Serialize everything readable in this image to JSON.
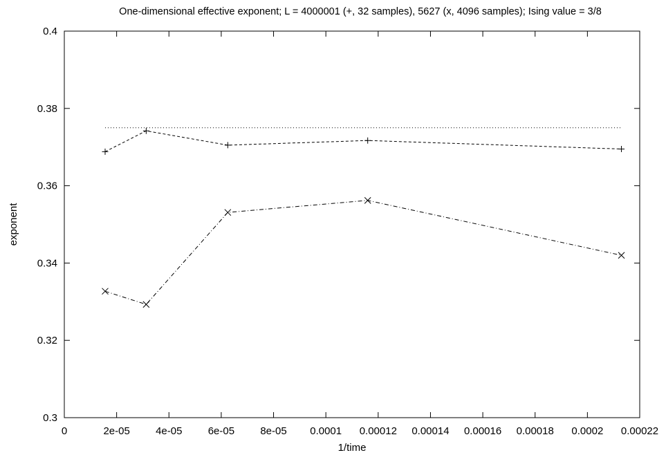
{
  "chart_data": {
    "type": "line",
    "title": "One-dimensional effective exponent; L = 4000001 (+, 32 samples), 5627 (x, 4096 samples); Ising value = 3/8",
    "xlabel": "1/time",
    "ylabel": "exponent",
    "xlim": [
      0,
      0.00022
    ],
    "ylim": [
      0.3,
      0.4
    ],
    "grid": false,
    "legend": "none",
    "x_ticks": [
      {
        "value": 0,
        "label": "0"
      },
      {
        "value": 2e-05,
        "label": "2e-05"
      },
      {
        "value": 4e-05,
        "label": "4e-05"
      },
      {
        "value": 6e-05,
        "label": "6e-05"
      },
      {
        "value": 8e-05,
        "label": "8e-05"
      },
      {
        "value": 0.0001,
        "label": "0.0001"
      },
      {
        "value": 0.00012,
        "label": "0.00012"
      },
      {
        "value": 0.00014,
        "label": "0.00014"
      },
      {
        "value": 0.00016,
        "label": "0.00016"
      },
      {
        "value": 0.00018,
        "label": "0.00018"
      },
      {
        "value": 0.0002,
        "label": "0.0002"
      },
      {
        "value": 0.00022,
        "label": "0.00022"
      }
    ],
    "y_ticks": [
      {
        "value": 0.3,
        "label": "0.3"
      },
      {
        "value": 0.32,
        "label": "0.32"
      },
      {
        "value": 0.34,
        "label": "0.34"
      },
      {
        "value": 0.36,
        "label": "0.36"
      },
      {
        "value": 0.38,
        "label": "0.38"
      },
      {
        "value": 0.4,
        "label": "0.4"
      }
    ],
    "series": [
      {
        "marker": "plus",
        "line": "dashed",
        "x": [
          1.56e-05,
          3.13e-05,
          6.25e-05,
          0.000116,
          0.000213
        ],
        "y": [
          0.3688,
          0.3742,
          0.3705,
          0.3717,
          0.3695
        ]
      },
      {
        "marker": "cross",
        "line": "dashdot",
        "x": [
          1.56e-05,
          3.13e-05,
          6.25e-05,
          0.000116,
          0.000213
        ],
        "y": [
          0.3327,
          0.3293,
          0.3531,
          0.3562,
          0.342
        ]
      },
      {
        "marker": "none",
        "line": "dotted",
        "x": [
          1.56e-05,
          0.000213
        ],
        "y": [
          0.375,
          0.375
        ]
      }
    ]
  }
}
